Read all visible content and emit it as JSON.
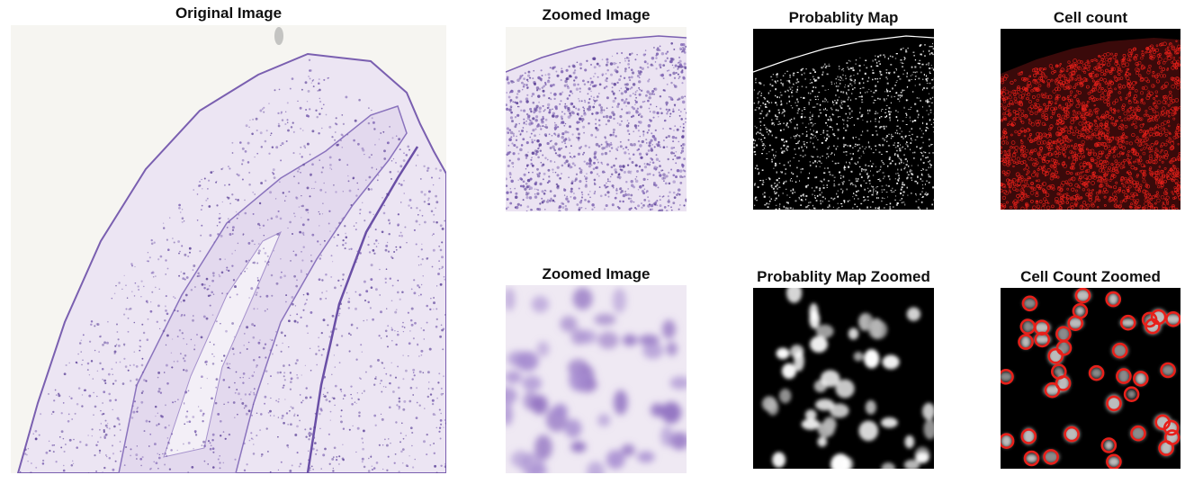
{
  "figure": {
    "panels": [
      {
        "id": "original",
        "title": "Original Image"
      },
      {
        "id": "zoomed",
        "title": "Zoomed Image"
      },
      {
        "id": "prob",
        "title": "Probablity Map"
      },
      {
        "id": "count",
        "title": "Cell count"
      },
      {
        "id": "zoomed2",
        "title": "Zoomed Image"
      },
      {
        "id": "prob-zoom",
        "title": "Probablity Map Zoomed"
      },
      {
        "id": "count-zoom",
        "title": "Cell Count Zoomed"
      }
    ]
  },
  "colors": {
    "stain": "#7a5fb0",
    "stain_dark": "#5a3f96",
    "tissue_bg": "#efeaf4",
    "slide_bg": "#f6f5f1",
    "map_bg": "#000000",
    "map_fg": "#ffffff",
    "detection": "#e8201a"
  }
}
